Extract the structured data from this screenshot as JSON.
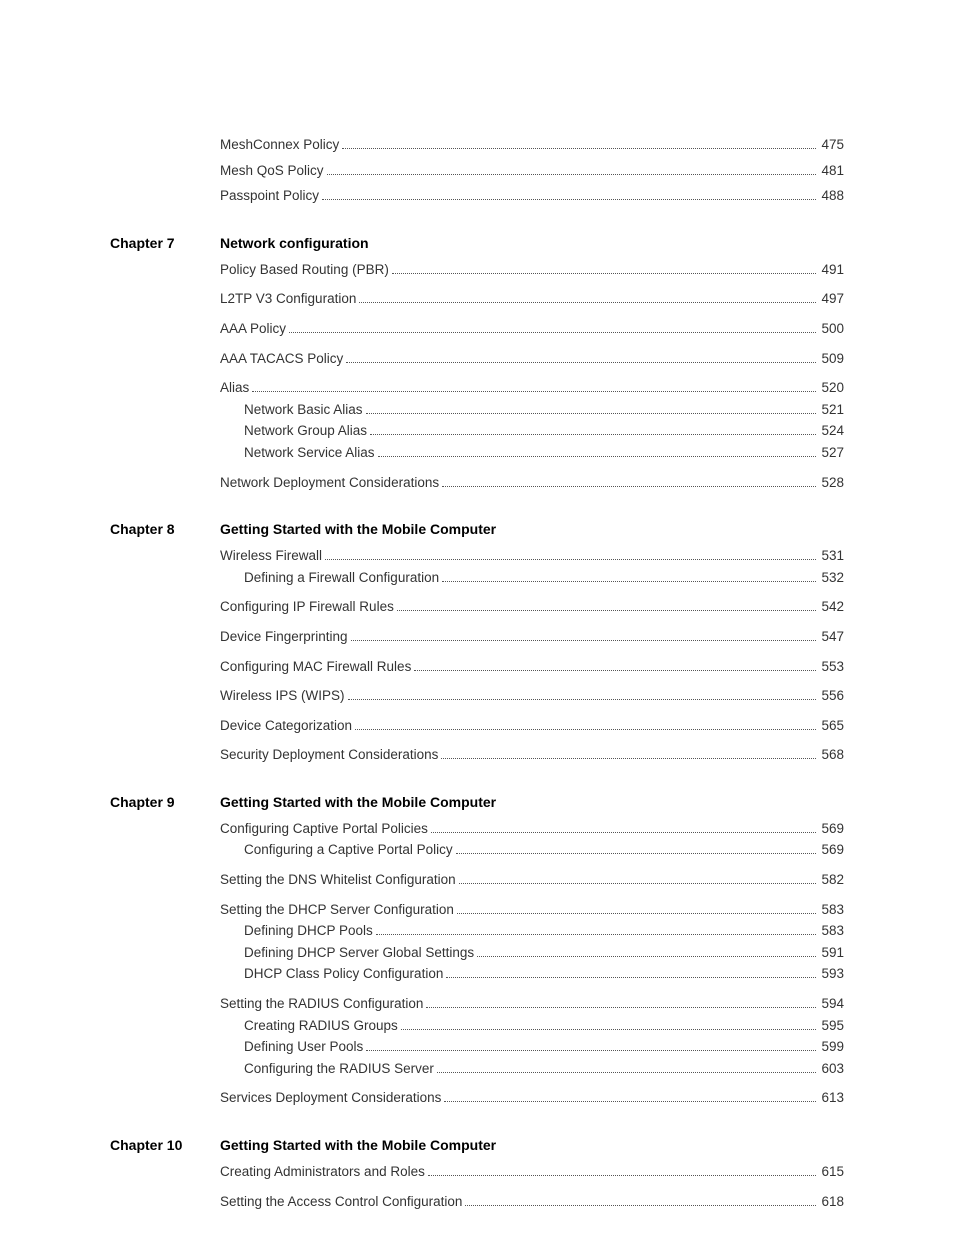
{
  "orphan": [
    {
      "text": "MeshConnex Policy",
      "page": "475",
      "indent": 0
    },
    {
      "text": "Mesh QoS Policy",
      "page": "481",
      "indent": 0
    },
    {
      "text": "Passpoint Policy",
      "page": "488",
      "indent": 0
    }
  ],
  "chapters": [
    {
      "label": "Chapter 7",
      "title": "Network configuration",
      "entries": [
        {
          "text": "Policy Based Routing (PBR)",
          "page": "491",
          "indent": 0,
          "spaced": true
        },
        {
          "text": "L2TP V3 Configuration",
          "page": "497",
          "indent": 0,
          "spaced": true
        },
        {
          "text": "AAA Policy",
          "page": "500",
          "indent": 0,
          "spaced": true
        },
        {
          "text": "AAA TACACS Policy",
          "page": "509",
          "indent": 0,
          "spaced": true
        },
        {
          "text": "Alias",
          "page": "520",
          "indent": 0,
          "spaced": true
        },
        {
          "text": "Network Basic Alias",
          "page": "521",
          "indent": 1
        },
        {
          "text": "Network Group Alias",
          "page": "524",
          "indent": 1
        },
        {
          "text": "Network Service Alias",
          "page": "527",
          "indent": 1
        },
        {
          "text": "Network Deployment Considerations",
          "page": "528",
          "indent": 0,
          "spaced": true
        }
      ]
    },
    {
      "label": "Chapter 8",
      "title": "Getting Started with the Mobile Computer",
      "entries": [
        {
          "text": "Wireless Firewall",
          "page": "531",
          "indent": 0,
          "spaced": true
        },
        {
          "text": "Defining a Firewall Configuration",
          "page": "532",
          "indent": 1
        },
        {
          "text": "Configuring IP Firewall Rules",
          "page": "542",
          "indent": 0,
          "spaced": true
        },
        {
          "text": "Device Fingerprinting",
          "page": "547",
          "indent": 0,
          "spaced": true
        },
        {
          "text": "Configuring MAC Firewall Rules",
          "page": "553",
          "indent": 0,
          "spaced": true
        },
        {
          "text": "Wireless IPS (WIPS)",
          "page": "556",
          "indent": 0,
          "spaced": true
        },
        {
          "text": "Device Categorization",
          "page": "565",
          "indent": 0,
          "spaced": true
        },
        {
          "text": "Security Deployment Considerations",
          "page": "568",
          "indent": 0,
          "spaced": true
        }
      ]
    },
    {
      "label": "Chapter 9",
      "title": "Getting Started with the Mobile Computer",
      "entries": [
        {
          "text": "Configuring Captive Portal Policies",
          "page": "569",
          "indent": 0,
          "spaced": true
        },
        {
          "text": "Configuring a Captive Portal Policy",
          "page": "569",
          "indent": 1
        },
        {
          "text": "Setting the DNS Whitelist Configuration",
          "page": "582",
          "indent": 0,
          "spaced": true
        },
        {
          "text": "Setting the DHCP Server Configuration",
          "page": "583",
          "indent": 0,
          "spaced": true
        },
        {
          "text": "Defining DHCP Pools",
          "page": "583",
          "indent": 1
        },
        {
          "text": "Defining DHCP Server Global Settings",
          "page": "591",
          "indent": 1
        },
        {
          "text": "DHCP Class Policy Configuration",
          "page": "593",
          "indent": 1
        },
        {
          "text": "Setting the RADIUS Configuration",
          "page": "594",
          "indent": 0,
          "spaced": true
        },
        {
          "text": "Creating RADIUS Groups",
          "page": "595",
          "indent": 1
        },
        {
          "text": "Defining User Pools",
          "page": "599",
          "indent": 1
        },
        {
          "text": "Configuring the RADIUS Server",
          "page": "603",
          "indent": 1
        },
        {
          "text": "Services Deployment Considerations",
          "page": "613",
          "indent": 0,
          "spaced": true
        }
      ]
    },
    {
      "label": "Chapter 10",
      "title": "Getting Started with the Mobile Computer",
      "entries": [
        {
          "text": "Creating Administrators and Roles",
          "page": "615",
          "indent": 0,
          "spaced": true
        },
        {
          "text": "Setting the Access Control Configuration",
          "page": "618",
          "indent": 0,
          "spaced": true
        }
      ]
    }
  ]
}
